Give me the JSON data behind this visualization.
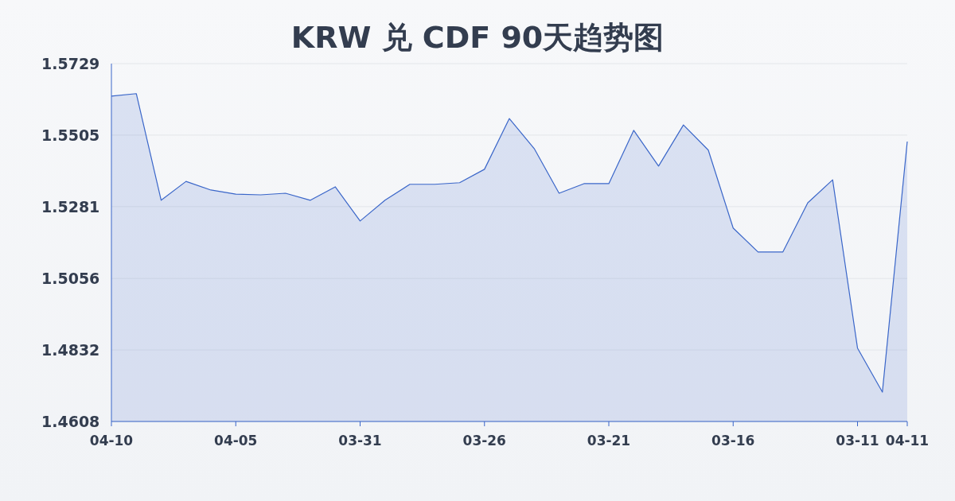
{
  "chart_data": {
    "type": "area",
    "title": "KRW 兑 CDF 90天趋势图",
    "categories": [
      "04-10",
      null,
      null,
      null,
      null,
      "04-05",
      null,
      null,
      null,
      null,
      "03-31",
      null,
      null,
      null,
      null,
      "03-26",
      null,
      null,
      null,
      null,
      "03-21",
      null,
      null,
      null,
      null,
      "03-16",
      null,
      null,
      null,
      null,
      "03-11",
      null,
      "04-11"
    ],
    "values": [
      1.5627,
      1.5635,
      1.5301,
      1.536,
      1.5333,
      1.532,
      1.5318,
      1.5323,
      1.5301,
      1.5343,
      1.5236,
      1.5301,
      1.5351,
      1.5351,
      1.5356,
      1.5398,
      1.5557,
      1.5463,
      1.5323,
      1.5353,
      1.5353,
      1.552,
      1.5408,
      1.5537,
      1.5458,
      1.5214,
      1.5139,
      1.5139,
      1.5293,
      1.5365,
      1.4838,
      1.47,
      1.5485
    ],
    "color": "#3a66c9",
    "ylim": [
      1.4608,
      1.5729
    ],
    "yticks": [
      1.4608,
      1.4832,
      1.5056,
      1.5281,
      1.5505,
      1.5729
    ],
    "grid": "y",
    "marker": "none",
    "line_style": "solid"
  }
}
